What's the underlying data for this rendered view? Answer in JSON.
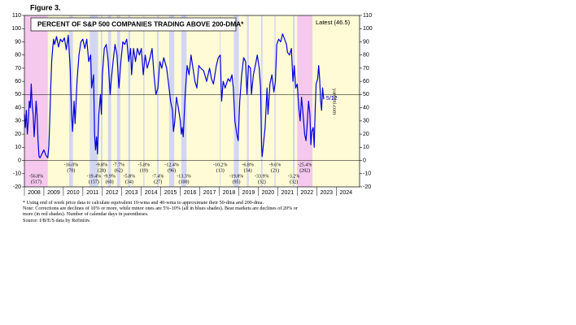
{
  "figure_label": "Figure 3.",
  "chart_data": {
    "type": "line",
    "title": "PERCENT OF S&P 500 COMPANIES TRADING ABOVE 200-DMA*",
    "latest_label": "Latest (46.5)",
    "end_label": "5/12",
    "source_mark": "yardeni.com",
    "color": "#0000dd",
    "background": "#fffbd6",
    "shade_colors": {
      "bear": "#f5c8ee",
      "correction": "#d3d6f3"
    },
    "hline": 50,
    "xlim": [
      2008,
      2025.2
    ],
    "xticks": [
      2008,
      2009,
      2010,
      2011,
      2012,
      2013,
      2014,
      2015,
      2016,
      2017,
      2018,
      2019,
      2020,
      2021,
      2022,
      2023,
      2024
    ],
    "ylim": [
      -20,
      110
    ],
    "yticks": [
      -20,
      -10,
      0,
      10,
      20,
      30,
      40,
      50,
      60,
      70,
      80,
      90,
      100,
      110
    ],
    "x": [
      2008.0,
      2008.05,
      2008.1,
      2008.15,
      2008.2,
      2008.25,
      2008.3,
      2008.35,
      2008.4,
      2008.45,
      2008.5,
      2008.55,
      2008.6,
      2008.65,
      2008.7,
      2008.75,
      2008.8,
      2008.9,
      2009.0,
      2009.1,
      2009.2,
      2009.25,
      2009.3,
      2009.35,
      2009.4,
      2009.45,
      2009.5,
      2009.55,
      2009.65,
      2009.75,
      2009.85,
      2009.95,
      2010.05,
      2010.15,
      2010.25,
      2010.35,
      2010.42,
      2010.47,
      2010.55,
      2010.6,
      2010.7,
      2010.8,
      2010.9,
      2011.0,
      2011.1,
      2011.2,
      2011.3,
      2011.4,
      2011.45,
      2011.55,
      2011.6,
      2011.65,
      2011.7,
      2011.75,
      2011.82,
      2011.9,
      2011.95,
      2012.0,
      2012.1,
      2012.2,
      2012.3,
      2012.4,
      2012.45,
      2012.55,
      2012.65,
      2012.75,
      2012.85,
      2012.95,
      2013.05,
      2013.15,
      2013.25,
      2013.35,
      2013.45,
      2013.5,
      2013.6,
      2013.7,
      2013.8,
      2013.9,
      2014.0,
      2014.1,
      2014.2,
      2014.3,
      2014.45,
      2014.55,
      2014.65,
      2014.75,
      2014.85,
      2014.95,
      2015.05,
      2015.15,
      2015.3,
      2015.4,
      2015.5,
      2015.6,
      2015.65,
      2015.72,
      2015.8,
      2015.9,
      2016.0,
      2016.05,
      2016.1,
      2016.15,
      2016.25,
      2016.35,
      2016.45,
      2016.55,
      2016.65,
      2016.75,
      2016.85,
      2016.95,
      2017.05,
      2017.2,
      2017.35,
      2017.5,
      2017.6,
      2017.7,
      2017.85,
      2017.95,
      2018.05,
      2018.12,
      2018.2,
      2018.3,
      2018.45,
      2018.55,
      2018.65,
      2018.72,
      2018.8,
      2018.9,
      2018.97,
      2019.05,
      2019.15,
      2019.25,
      2019.35,
      2019.42,
      2019.5,
      2019.6,
      2019.65,
      2019.75,
      2019.85,
      2019.95,
      2020.05,
      2020.12,
      2020.17,
      2020.2,
      2020.25,
      2020.35,
      2020.45,
      2020.5,
      2020.6,
      2020.7,
      2020.8,
      2020.88,
      2020.95,
      2021.05,
      2021.15,
      2021.25,
      2021.35,
      2021.45,
      2021.5,
      2021.6,
      2021.7,
      2021.78,
      2021.85,
      2021.92,
      2022.0,
      2022.08,
      2022.15,
      2022.22,
      2022.3,
      2022.38,
      2022.45,
      2022.5,
      2022.58,
      2022.65,
      2022.7,
      2022.75,
      2022.82,
      2022.87,
      2022.92,
      2022.97,
      2023.05,
      2023.1,
      2023.15,
      2023.2,
      2023.25,
      2023.3,
      2023.36
    ],
    "values": [
      35,
      25,
      38,
      20,
      30,
      45,
      40,
      58,
      42,
      35,
      18,
      30,
      45,
      35,
      15,
      3,
      2,
      5,
      8,
      4,
      2,
      10,
      30,
      55,
      75,
      85,
      92,
      88,
      94,
      86,
      92,
      90,
      93,
      84,
      95,
      70,
      35,
      22,
      45,
      28,
      60,
      80,
      90,
      92,
      85,
      92,
      75,
      80,
      55,
      65,
      20,
      8,
      18,
      5,
      35,
      50,
      35,
      65,
      85,
      88,
      75,
      50,
      60,
      75,
      88,
      80,
      55,
      75,
      90,
      88,
      92,
      75,
      85,
      65,
      85,
      75,
      85,
      80,
      85,
      65,
      80,
      70,
      78,
      85,
      65,
      50,
      55,
      75,
      70,
      78,
      70,
      58,
      45,
      38,
      22,
      30,
      48,
      40,
      30,
      20,
      25,
      18,
      50,
      72,
      65,
      80,
      70,
      60,
      55,
      72,
      70,
      68,
      60,
      70,
      62,
      58,
      72,
      78,
      80,
      45,
      60,
      55,
      62,
      60,
      65,
      55,
      30,
      20,
      15,
      45,
      65,
      78,
      75,
      50,
      72,
      70,
      50,
      65,
      72,
      80,
      70,
      55,
      10,
      3,
      10,
      25,
      55,
      35,
      58,
      65,
      52,
      60,
      88,
      92,
      90,
      96,
      92,
      88,
      82,
      80,
      85,
      60,
      72,
      55,
      58,
      40,
      30,
      48,
      35,
      20,
      15,
      25,
      45,
      35,
      12,
      22,
      25,
      10,
      38,
      58,
      62,
      72,
      62,
      45,
      38,
      55,
      46.5
    ],
    "shades": [
      {
        "kind": "bear",
        "range": [
          2008.0,
          2009.2
        ],
        "decline": "-56.8%",
        "days": "(517)"
      },
      {
        "kind": "correction",
        "range": [
          2010.3,
          2010.49
        ],
        "decline": "-16.0%",
        "days": "(70)"
      },
      {
        "kind": "correction",
        "range": [
          2011.35,
          2011.78
        ],
        "decline": "-19.4%",
        "days": "(157)"
      },
      {
        "kind": "correction",
        "range": [
          2011.92,
          2012.0
        ],
        "decline": "-9.8%",
        "days": "(28)"
      },
      {
        "kind": "correction",
        "range": [
          2012.29,
          2012.45
        ],
        "decline": "-9.9%",
        "days": "(60)"
      },
      {
        "kind": "correction",
        "range": [
          2012.75,
          2012.92
        ],
        "decline": "-7.7%",
        "days": "(62)"
      },
      {
        "kind": "correction",
        "range": [
          2013.33,
          2013.43
        ],
        "decline": "-5.8%",
        "days": "(34)"
      },
      {
        "kind": "correction",
        "range": [
          2014.1,
          2014.16
        ],
        "decline": "-5.8%",
        "days": "(19)"
      },
      {
        "kind": "correction",
        "range": [
          2014.81,
          2014.89
        ],
        "decline": "-7.4%",
        "days": "(27)"
      },
      {
        "kind": "correction",
        "range": [
          2015.43,
          2015.69
        ],
        "decline": "-12.4%",
        "days": "(96)"
      },
      {
        "kind": "correction",
        "range": [
          2016.05,
          2016.32
        ],
        "decline": "-13.3%",
        "days": "(100)"
      },
      {
        "kind": "correction",
        "range": [
          2018.03,
          2018.07
        ],
        "decline": "-10.2%",
        "days": "(13)"
      },
      {
        "kind": "correction",
        "range": [
          2018.75,
          2019.0
        ],
        "decline": "-19.8%",
        "days": "(95)"
      },
      {
        "kind": "correction",
        "range": [
          2019.42,
          2019.51
        ],
        "decline": "-6.8%",
        "days": "(34)"
      },
      {
        "kind": "correction",
        "range": [
          2020.14,
          2020.22
        ],
        "decline": "-33.9%",
        "days": "(32)"
      },
      {
        "kind": "correction",
        "range": [
          2020.83,
          2020.89
        ],
        "decline": "-9.6%",
        "days": "(21)"
      },
      {
        "kind": "correction",
        "range": [
          2021.78,
          2021.87
        ],
        "decline": "-3.2%",
        "days": "(32)"
      },
      {
        "kind": "bear",
        "range": [
          2022.0,
          2022.78
        ],
        "decline": "-25.4%",
        "days": "(282)"
      }
    ]
  },
  "footnotes": [
    "*   Using end of week price data to calculate equivalent 10-wma and 40-wma to approximate their 50-dma and 200-dma.",
    "Note: Corrections are declines of 10% or more, while minor ones are 5%-10% (all in blues shades). Bear markets are declines of 20% or more (in red shades). Number of calendar days in parentheses.",
    "Source: I/B/E/S data by Refinitiv."
  ]
}
